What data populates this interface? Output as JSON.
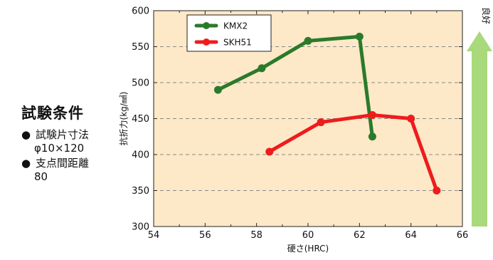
{
  "conditions": {
    "title": "試験条件",
    "items": [
      {
        "bullet": "●",
        "label": "試験片寸法",
        "value": "φ10×120"
      },
      {
        "bullet": "●",
        "label": "支点間距離",
        "value": "80"
      }
    ]
  },
  "indicator": {
    "label": "良好",
    "color": "#a8d97a"
  },
  "chart_data": {
    "type": "line",
    "xlabel": "硬さ(HRC)",
    "ylabel": "抗折力(kg/㎟)",
    "xlim": [
      54,
      66
    ],
    "ylim": [
      300,
      600
    ],
    "xticks": [
      54,
      56,
      58,
      60,
      62,
      64,
      66
    ],
    "yticks": [
      300,
      350,
      400,
      450,
      500,
      550,
      600
    ],
    "grid": "horizontal dashed",
    "background": "#fde8c8",
    "legend_position": "top-left",
    "series": [
      {
        "name": "KMX2",
        "color": "#2b7a2b",
        "x": [
          56.5,
          58.2,
          60,
          62,
          62.5
        ],
        "y": [
          490,
          520,
          558,
          564,
          425
        ]
      },
      {
        "name": "SKH51",
        "color": "#ee1c1c",
        "x": [
          58.5,
          60.5,
          62.5,
          64,
          65
        ],
        "y": [
          404,
          445,
          455,
          450,
          350
        ]
      }
    ]
  }
}
